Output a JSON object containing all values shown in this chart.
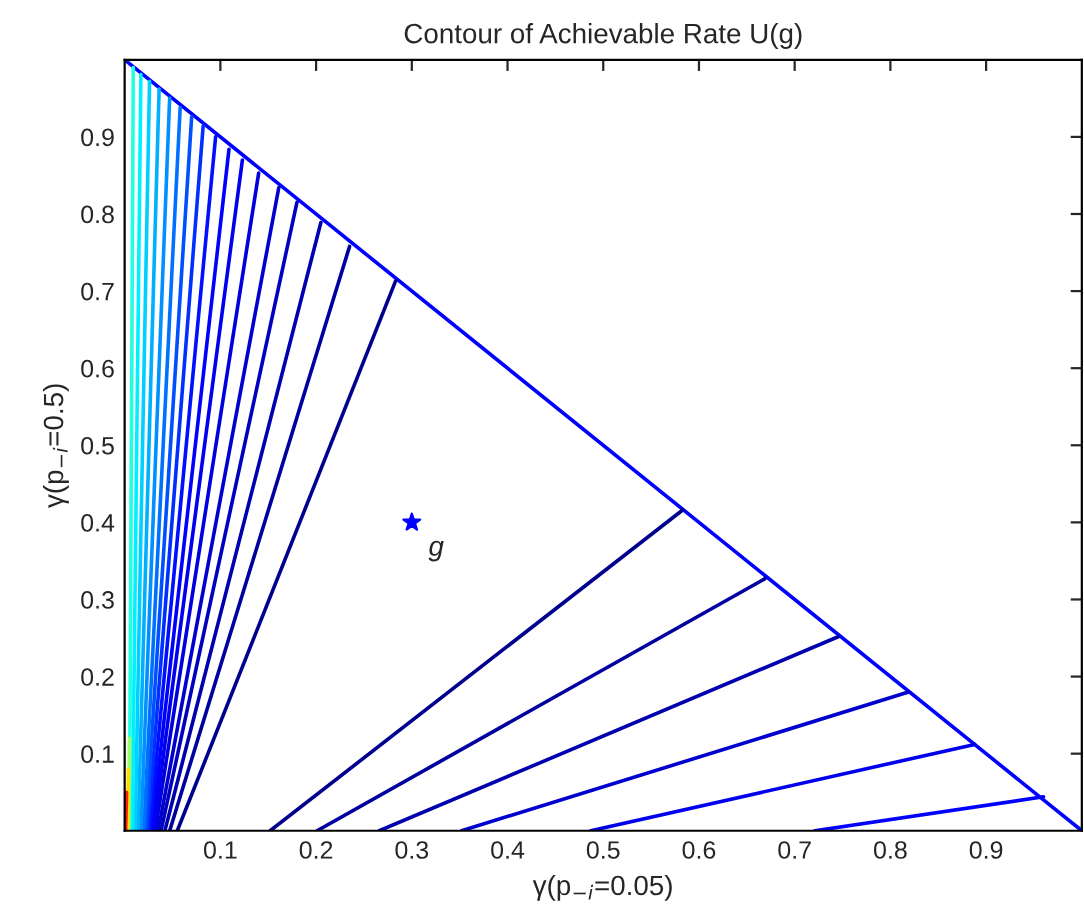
{
  "chart_data": {
    "type": "line",
    "title": "Contour of Achievable Rate U(g)",
    "xlabel": "γ(p$_{−i}$=0.05)",
    "ylabel": "γ(p$_{−i}$=0.5)",
    "xlim": [
      0,
      1
    ],
    "ylim": [
      0,
      1
    ],
    "xticks": [
      0.1,
      0.2,
      0.3,
      0.4,
      0.5,
      0.6,
      0.7,
      0.8,
      0.9
    ],
    "yticks": [
      0.1,
      0.2,
      0.3,
      0.4,
      0.5,
      0.6,
      0.7,
      0.8,
      0.9
    ],
    "grid": false,
    "legend": false,
    "marker": "none",
    "line_style": "solid",
    "annotations": [
      {
        "text": "g",
        "x": 0.3,
        "y": 0.4
      }
    ],
    "series": [
      {
        "color": "#0000ff",
        "x": [
          0,
          1
        ],
        "values": [
          1,
          0
        ]
      },
      {
        "color": "#00008f",
        "x": [
          0.152,
          0.583
        ],
        "values": [
          0,
          0.416
        ]
      },
      {
        "color": "#00009f",
        "x": [
          0.201,
          0.669
        ],
        "values": [
          0,
          0.327
        ]
      },
      {
        "color": "#0000af",
        "x": [
          0.266,
          0.746
        ],
        "values": [
          0,
          0.252
        ]
      },
      {
        "color": "#0000cf",
        "x": [
          0.352,
          0.819
        ],
        "values": [
          0,
          0.18
        ]
      },
      {
        "color": "#0000ef",
        "x": [
          0.487,
          0.888
        ],
        "values": [
          0,
          0.112
        ]
      },
      {
        "color": "#0000ff",
        "x": [
          0.721,
          0.96
        ],
        "values": [
          0,
          0.044
        ]
      },
      {
        "color": "#00008f",
        "x": [
          0.055,
          0.283
        ],
        "values": [
          0,
          0.713
        ]
      },
      {
        "color": "#00009f",
        "x": [
          0.047,
          0.235
        ],
        "values": [
          0,
          0.758
        ]
      },
      {
        "color": "#0000af",
        "x": [
          0.042,
          0.205
        ],
        "values": [
          0,
          0.789
        ]
      },
      {
        "color": "#0000bf",
        "x": [
          0.038,
          0.18
        ],
        "values": [
          0,
          0.815
        ]
      },
      {
        "color": "#0000cf",
        "x": [
          0.035,
          0.161
        ],
        "values": [
          0,
          0.834
        ]
      },
      {
        "color": "#0000df",
        "x": [
          0.032,
          0.14
        ],
        "values": [
          0,
          0.853
        ]
      },
      {
        "color": "#0000ef",
        "x": [
          0.03,
          0.123
        ],
        "values": [
          0,
          0.87
        ]
      },
      {
        "color": "#0000ff",
        "x": [
          0.028,
          0.109
        ],
        "values": [
          0,
          0.884
        ]
      },
      {
        "color": "#0010ff",
        "x": [
          0.026,
          0.095
        ],
        "values": [
          0,
          0.9
        ]
      },
      {
        "color": "#0030ff",
        "x": [
          0.024,
          0.082
        ],
        "values": [
          0,
          0.914
        ]
      },
      {
        "color": "#0050ff",
        "x": [
          0.022,
          0.07
        ],
        "values": [
          0,
          0.926
        ]
      },
      {
        "color": "#0070ff",
        "x": [
          0.02,
          0.058
        ],
        "values": [
          0,
          0.938
        ]
      },
      {
        "color": "#0090ff",
        "x": [
          0.017,
          0.047
        ],
        "values": [
          0,
          0.95
        ]
      },
      {
        "color": "#00b0ff",
        "x": [
          0.014,
          0.036
        ],
        "values": [
          0,
          0.962
        ]
      },
      {
        "color": "#00d0ff",
        "x": [
          0.011,
          0.026
        ],
        "values": [
          0,
          0.972
        ]
      },
      {
        "color": "#00f0ff",
        "x": [
          0.008,
          0.017
        ],
        "values": [
          0,
          0.981
        ]
      },
      {
        "color": "#20ffdf",
        "x": [
          0.005,
          0.009
        ],
        "values": [
          0,
          0.99
        ]
      },
      {
        "color": "#9fff60",
        "x": [
          0.004,
          0.005
        ],
        "values": [
          0,
          0.12
        ]
      },
      {
        "color": "#ffdf00",
        "x": [
          0.003,
          0.004
        ],
        "values": [
          0,
          0.08
        ]
      },
      {
        "color": "#ff2000",
        "x": [
          0.001,
          0.002
        ],
        "values": [
          0,
          0.05
        ]
      },
      {
        "type": "scatter",
        "color": "#0000ff",
        "marker": "star",
        "x": [
          0.3
        ],
        "values": [
          0.4
        ]
      }
    ]
  }
}
